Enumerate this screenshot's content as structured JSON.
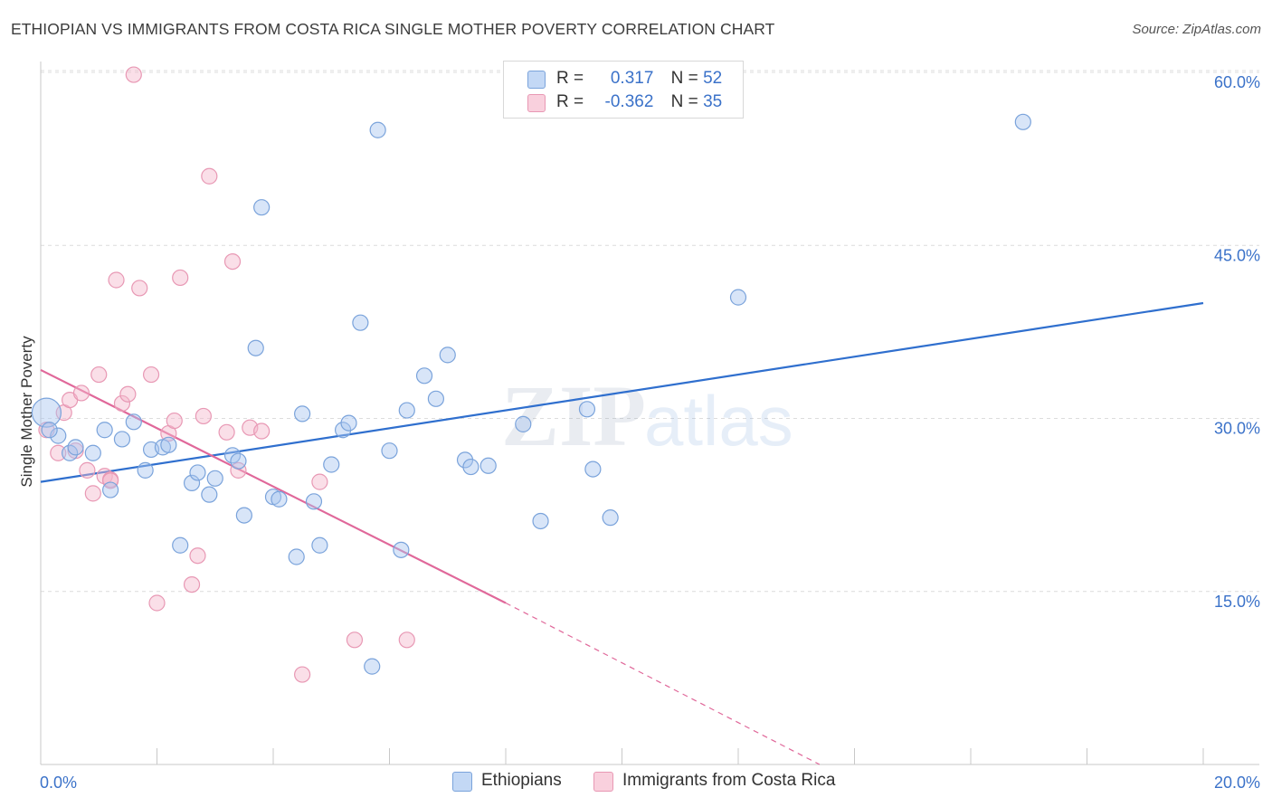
{
  "header": {
    "title": "ETHIOPIAN VS IMMIGRANTS FROM COSTA RICA SINGLE MOTHER POVERTY CORRELATION CHART",
    "source": "Source: ZipAtlas.com"
  },
  "watermark": {
    "zip": "ZIP",
    "atlas": "atlas"
  },
  "legend": {
    "rows": [
      {
        "r_label": "R =",
        "r_value": "0.317",
        "n_label": "N =",
        "n_value": "52",
        "color": "#a9c6f0"
      },
      {
        "r_label": "R =",
        "r_value": "-0.362",
        "n_label": "N =",
        "n_value": "35",
        "color": "#f5b8cb"
      }
    ]
  },
  "bottom_legend": {
    "items": [
      {
        "label": "Ethiopians",
        "color": "#a9c6f0"
      },
      {
        "label": "Immigrants from Costa Rica",
        "color": "#f5b8cb"
      }
    ]
  },
  "colors": {
    "blue_line": "#2f6fce",
    "pink_line": "#e0689a",
    "blue_fill": "rgba(169,198,240,0.45)",
    "blue_stroke": "#7aa3db",
    "pink_fill": "rgba(245,184,203,0.45)",
    "pink_stroke": "#e898b4",
    "axis_text": "#3b72c9",
    "grid": "#dcdcdc"
  },
  "chart_data": {
    "type": "scatter",
    "title": "ETHIOPIAN VS IMMIGRANTS FROM COSTA RICA SINGLE MOTHER POVERTY CORRELATION CHART",
    "xlabel": "",
    "ylabel": "Single Mother Poverty",
    "xlim": [
      0,
      20
    ],
    "ylim": [
      0,
      60
    ],
    "x_tick_labels": [
      "0.0%",
      "20.0%"
    ],
    "y_ticks": [
      15,
      30,
      45,
      60
    ],
    "y_tick_labels": [
      "15.0%",
      "30.0%",
      "45.0%",
      "60.0%"
    ],
    "grid": "horizontal dashed",
    "series": [
      {
        "name": "Ethiopians",
        "trend": {
          "x0": 0,
          "y0": 24.5,
          "x1": 20,
          "y1": 40.0
        },
        "points": [
          [
            0.1,
            30.5
          ],
          [
            0.3,
            28.5
          ],
          [
            0.5,
            27.0
          ],
          [
            0.6,
            27.5
          ],
          [
            0.9,
            27.0
          ],
          [
            1.1,
            29.0
          ],
          [
            1.2,
            23.8
          ],
          [
            1.4,
            28.2
          ],
          [
            1.6,
            29.7
          ],
          [
            1.8,
            25.5
          ],
          [
            1.9,
            27.3
          ],
          [
            2.1,
            27.5
          ],
          [
            2.2,
            27.7
          ],
          [
            2.4,
            19.0
          ],
          [
            2.6,
            24.4
          ],
          [
            2.7,
            25.3
          ],
          [
            2.9,
            23.4
          ],
          [
            3.0,
            24.8
          ],
          [
            3.3,
            26.8
          ],
          [
            3.4,
            26.3
          ],
          [
            3.5,
            21.6
          ],
          [
            3.7,
            36.1
          ],
          [
            3.8,
            48.3
          ],
          [
            4.0,
            23.2
          ],
          [
            4.1,
            23.0
          ],
          [
            4.4,
            18.0
          ],
          [
            4.5,
            30.4
          ],
          [
            4.7,
            22.8
          ],
          [
            4.8,
            19.0
          ],
          [
            5.0,
            26.0
          ],
          [
            5.2,
            29.0
          ],
          [
            5.3,
            29.6
          ],
          [
            5.5,
            38.3
          ],
          [
            5.7,
            8.5
          ],
          [
            5.8,
            55.0
          ],
          [
            6.0,
            27.2
          ],
          [
            6.2,
            18.6
          ],
          [
            6.3,
            30.7
          ],
          [
            6.6,
            33.7
          ],
          [
            6.8,
            31.7
          ],
          [
            7.0,
            35.5
          ],
          [
            7.3,
            26.4
          ],
          [
            7.4,
            25.8
          ],
          [
            7.7,
            25.9
          ],
          [
            8.3,
            29.5
          ],
          [
            8.6,
            21.1
          ],
          [
            9.4,
            30.8
          ],
          [
            9.5,
            25.6
          ],
          [
            9.8,
            21.4
          ],
          [
            12.0,
            40.5
          ],
          [
            16.9,
            55.7
          ],
          [
            0.15,
            29.0
          ]
        ]
      },
      {
        "name": "Immigrants from Costa Rica",
        "trend": {
          "x0": 0,
          "y0": 34.2,
          "x1": 8.0,
          "y1": 14.0,
          "dash_x1": 13.4,
          "dash_y1": 0
        },
        "points": [
          [
            0.1,
            29.0
          ],
          [
            0.3,
            27.0
          ],
          [
            0.4,
            30.5
          ],
          [
            0.5,
            31.6
          ],
          [
            0.6,
            27.2
          ],
          [
            0.7,
            32.2
          ],
          [
            0.8,
            25.5
          ],
          [
            0.9,
            23.5
          ],
          [
            1.0,
            33.8
          ],
          [
            1.1,
            25.0
          ],
          [
            1.2,
            24.7
          ],
          [
            1.3,
            42.0
          ],
          [
            1.4,
            31.3
          ],
          [
            1.5,
            32.1
          ],
          [
            1.6,
            59.8
          ],
          [
            1.7,
            41.3
          ],
          [
            1.9,
            33.8
          ],
          [
            2.0,
            14.0
          ],
          [
            2.2,
            28.7
          ],
          [
            2.3,
            29.8
          ],
          [
            2.4,
            42.2
          ],
          [
            2.6,
            15.6
          ],
          [
            2.7,
            18.1
          ],
          [
            2.8,
            30.2
          ],
          [
            2.9,
            51.0
          ],
          [
            3.2,
            28.8
          ],
          [
            3.3,
            43.6
          ],
          [
            3.4,
            25.5
          ],
          [
            3.6,
            29.2
          ],
          [
            3.8,
            28.9
          ],
          [
            4.5,
            7.8
          ],
          [
            4.8,
            24.5
          ],
          [
            5.4,
            10.8
          ],
          [
            6.3,
            10.8
          ],
          [
            1.2,
            24.6
          ]
        ]
      }
    ]
  }
}
